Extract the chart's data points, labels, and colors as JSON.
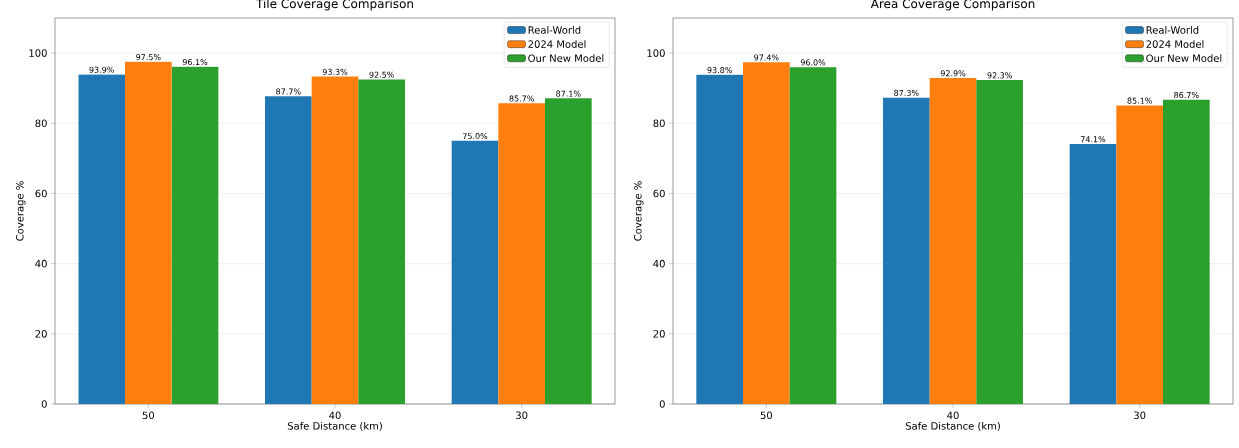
{
  "chart_data": [
    {
      "type": "bar",
      "title": "Tile Coverage Comparison",
      "xlabel": "Safe Distance (km)",
      "ylabel": "Coverage %",
      "categories": [
        "50",
        "40",
        "30"
      ],
      "series": [
        {
          "name": "Real-World",
          "color": "#1f77b4",
          "values": [
            93.9,
            87.7,
            75.0
          ],
          "value_labels": [
            "93.9%",
            "87.7%",
            "75.0%"
          ]
        },
        {
          "name": "2024 Model",
          "color": "#ff7f0e",
          "values": [
            97.5,
            93.3,
            85.7
          ],
          "value_labels": [
            "97.5%",
            "93.3%",
            "85.7%"
          ]
        },
        {
          "name": "Our New Model",
          "color": "#2ca02c",
          "values": [
            96.1,
            92.5,
            87.1
          ],
          "value_labels": [
            "96.1%",
            "92.5%",
            "87.1%"
          ]
        }
      ],
      "ylim": [
        0,
        110
      ],
      "yticks": [
        0,
        20,
        40,
        60,
        80,
        100
      ],
      "grid": "y",
      "legend": "top right"
    },
    {
      "type": "bar",
      "title": "Area Coverage Comparison",
      "xlabel": "Safe Distance (km)",
      "ylabel": "Coverage %",
      "categories": [
        "50",
        "40",
        "30"
      ],
      "series": [
        {
          "name": "Real-World",
          "color": "#1f77b4",
          "values": [
            93.8,
            87.3,
            74.1
          ],
          "value_labels": [
            "93.8%",
            "87.3%",
            "74.1%"
          ]
        },
        {
          "name": "2024 Model",
          "color": "#ff7f0e",
          "values": [
            97.4,
            92.9,
            85.1
          ],
          "value_labels": [
            "97.4%",
            "92.9%",
            "85.1%"
          ]
        },
        {
          "name": "Our New Model",
          "color": "#2ca02c",
          "values": [
            96.0,
            92.3,
            86.7
          ],
          "value_labels": [
            "96.0%",
            "92.3%",
            "86.7%"
          ]
        }
      ],
      "ylim": [
        0,
        110
      ],
      "yticks": [
        0,
        20,
        40,
        60,
        80,
        100
      ],
      "grid": "y",
      "legend": "top right"
    }
  ]
}
